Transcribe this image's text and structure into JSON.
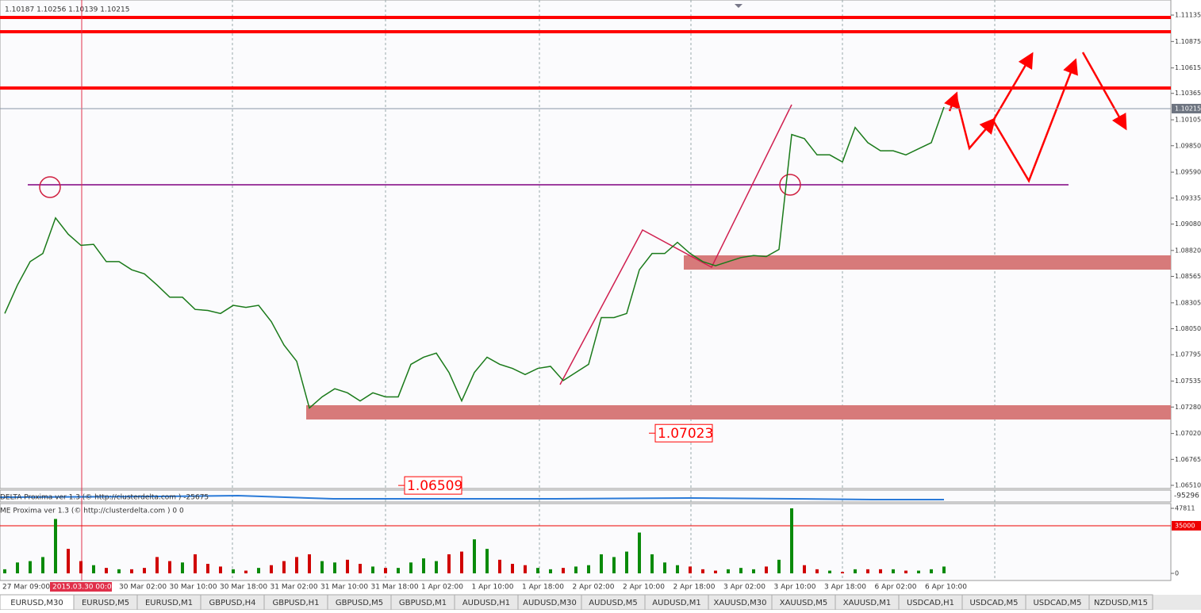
{
  "header": {
    "ohlc": "1.10187 1.10256 1.10139 1.10215"
  },
  "chart_data": [
    {
      "type": "line",
      "color": "#1a7a1a",
      "values": [
        1.082,
        1.0848,
        1.0871,
        1.0879,
        1.0914,
        1.0898,
        1.0887,
        1.0888,
        1.0871,
        1.0871,
        1.0863,
        1.0859,
        1.0848,
        1.0836,
        1.0836,
        1.0824,
        1.0823,
        1.082,
        1.0828,
        1.0826,
        1.0828,
        1.0812,
        1.0789,
        1.0773,
        1.0727,
        1.0738,
        1.0746,
        1.0742,
        1.0734,
        1.0742,
        1.0738,
        1.0738,
        1.077,
        1.0777,
        1.0781,
        1.0762,
        1.0734,
        1.0762,
        1.0777,
        1.077,
        1.0766,
        1.076,
        1.0766,
        1.0768,
        1.0754,
        1.0762,
        1.077,
        1.0816,
        1.0816,
        1.082,
        1.0863,
        1.0879,
        1.0879,
        1.089,
        1.0879,
        1.0871,
        1.0867,
        1.0871,
        1.0875,
        1.0877,
        1.0876,
        1.0883,
        1.0996,
        1.0992,
        1.0976,
        1.0976,
        1.0969,
        1.1003,
        1.0988,
        1.098,
        1.098,
        1.0976,
        1.0982,
        1.0988,
        1.1023
      ],
      "ylim": [
        1.0651,
        1.11135
      ],
      "yticks": [
        1.11135,
        1.10875,
        1.10615,
        {
          "value": 1.10365,
          "label": "1.10365"
        },
        1.10105,
        {
          "value": 1.0985,
          "label": "1.09850"
        },
        {
          "value": 1.0959,
          "label": "1.09590"
        },
        1.09335,
        {
          "value": 1.0908,
          "label": "1.09080"
        },
        {
          "value": 1.0882,
          "label": "1.08820"
        },
        1.08565,
        1.08305,
        {
          "value": 1.0805,
          "label": "1.08050"
        },
        1.07795,
        1.07535,
        {
          "value": 1.0728,
          "label": "1.07280"
        },
        {
          "value": 1.0702,
          "label": "1.07020"
        },
        1.06765,
        {
          "value": 1.0651,
          "label": "1.06510"
        }
      ],
      "current_price": 1.10215,
      "price_labels": [
        1.07023,
        1.06509
      ],
      "crosshair_label": "2015.03.30 00:00",
      "time_labels": [
        "27 Mar 09:00",
        "30 Mar 02:00",
        "30 Mar 10:00",
        "30 Mar 18:00",
        "31 Mar 02:00",
        "31 Mar 10:00",
        "31 Mar 18:00",
        "1 Apr 02:00",
        "1 Apr 10:00",
        "1 Apr 18:00",
        "2 Apr 02:00",
        "2 Apr 10:00",
        "2 Apr 18:00",
        "3 Apr 02:00",
        "3 Apr 10:00",
        "3 Apr 18:00",
        "6 Apr 02:00",
        "6 Apr 10:00"
      ]
    },
    {
      "type": "bar",
      "up_color": "#0a8a0a",
      "down_color": "#d00000",
      "values": [
        3000,
        8000,
        9000,
        12000,
        40000,
        18000,
        9000,
        6000,
        4000,
        3000,
        3000,
        4000,
        12000,
        9000,
        8000,
        14000,
        7000,
        5000,
        3000,
        2000,
        4000,
        6000,
        9000,
        12000,
        14000,
        9000,
        8000,
        10000,
        7000,
        5000,
        4000,
        4000,
        8000,
        11000,
        9000,
        14000,
        16000,
        25000,
        18000,
        10000,
        7000,
        6000,
        4000,
        3000,
        4000,
        5000,
        6000,
        14000,
        12000,
        16000,
        30000,
        14000,
        8000,
        6000,
        5000,
        3000,
        2000,
        3000,
        4000,
        3000,
        5000,
        10000,
        47811,
        6000,
        3000,
        2000,
        1000,
        3000,
        3000,
        3000,
        3000,
        2000,
        2000,
        3000,
        5000
      ],
      "ylim": [
        0,
        47811
      ],
      "yticks": [
        0,
        47811
      ],
      "level": 35000
    }
  ],
  "indicators": [
    "DELTA Proxima ver 1.3 (© http://clusterdelta.com ) -25675",
    "-95296",
    "ME Proxima ver 1.3 (© http://clusterdelta.com ) 0 0"
  ],
  "tabs": [
    "EURUSD,M30",
    "EURUSD,M5",
    "EURUSD,M1",
    "GBPUSD,H4",
    "GBPUSD,H1",
    "GBPUSD,M5",
    "GBPUSD,M1",
    "AUDUSD,H1",
    "AUDUSD,M30",
    "AUDUSD,M5",
    "AUDUSD,M1",
    "XAUUSD,M30",
    "XAUUSD,M5",
    "XAUUSD,M1",
    "USDCAD,H1",
    "USDCAD,M5",
    "USDCAD,M5",
    "NZDUSD,M15"
  ]
}
